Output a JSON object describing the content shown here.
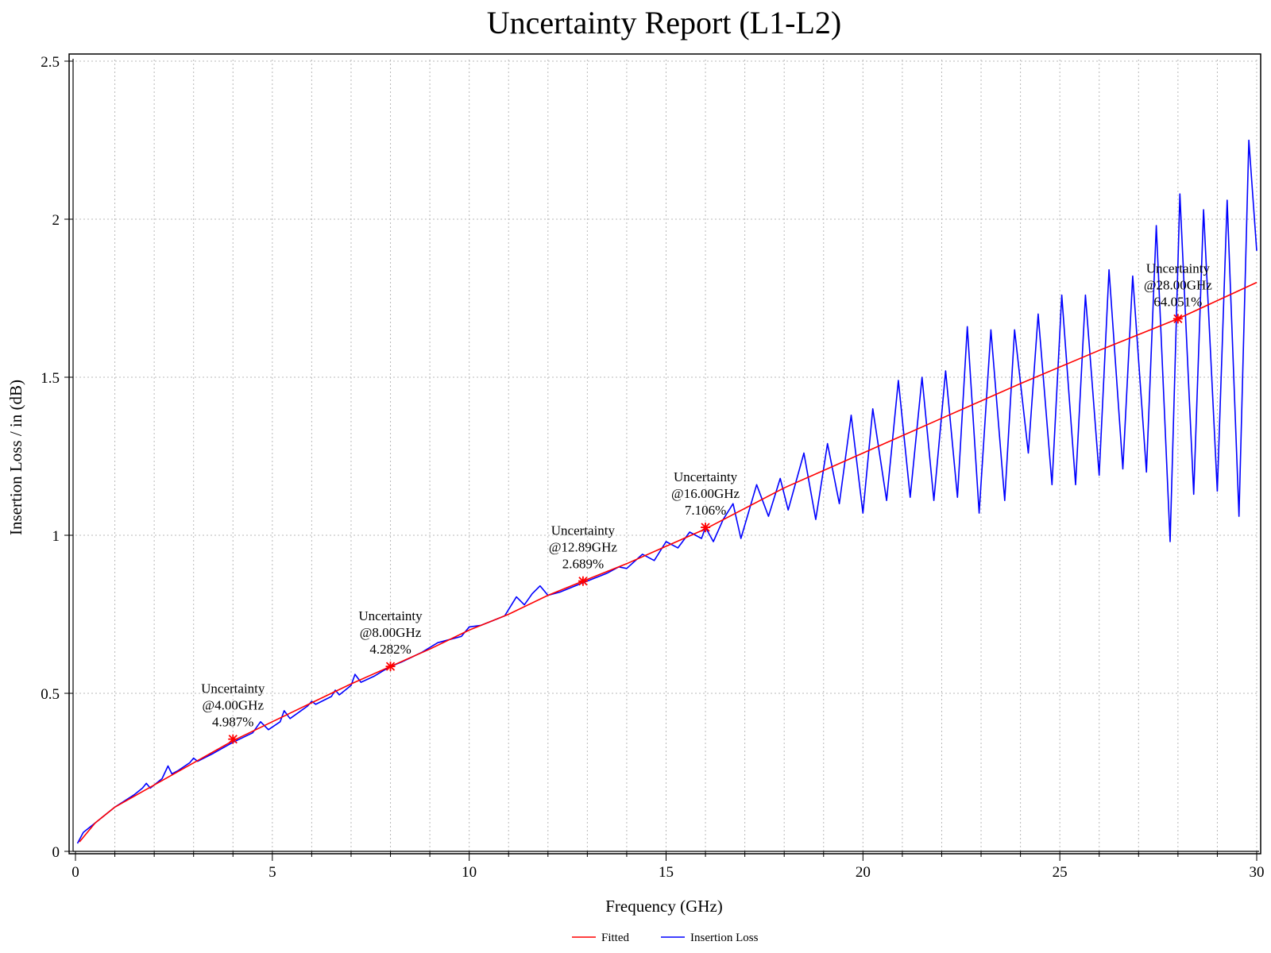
{
  "chart_data": {
    "type": "line",
    "title": "Uncertainty Report (L1-L2)",
    "xlabel": "Frequency (GHz)",
    "ylabel": "Insertion Loss / in (dB)",
    "xlim": [
      0,
      30
    ],
    "ylim": [
      0,
      2.5
    ],
    "xticks": [
      0,
      5,
      10,
      15,
      20,
      25,
      30
    ],
    "xtick_labels": [
      "0",
      "5",
      "10",
      "15",
      "20",
      "25",
      "30"
    ],
    "yticks": [
      0,
      0.5,
      1,
      1.5,
      2,
      2.5
    ],
    "ytick_labels": [
      "0",
      "0.5",
      "1",
      "1.5",
      "2",
      "2.5"
    ],
    "grid": true,
    "legend_position": "bottom-center",
    "series": [
      {
        "name": "Fitted",
        "color": "#ff0000",
        "x": [
          0.1,
          0.5,
          1,
          2,
          3,
          4,
          5,
          6,
          7,
          8,
          9,
          10,
          11,
          12,
          12.89,
          14,
          15,
          16,
          18,
          20,
          22,
          24,
          26,
          28,
          30
        ],
        "y": [
          0.03,
          0.09,
          0.14,
          0.21,
          0.28,
          0.35,
          0.41,
          0.47,
          0.53,
          0.585,
          0.64,
          0.7,
          0.75,
          0.81,
          0.855,
          0.91,
          0.965,
          1.02,
          1.15,
          1.26,
          1.37,
          1.48,
          1.585,
          1.685,
          1.8
        ]
      },
      {
        "name": "Insertion Loss",
        "color": "#0000ff",
        "x": [
          0.05,
          0.2,
          0.5,
          1,
          1.5,
          1.7,
          1.8,
          1.9,
          2.2,
          2.35,
          2.45,
          2.6,
          2.9,
          3.0,
          3.1,
          3.5,
          4,
          4.5,
          4.7,
          4.9,
          5.2,
          5.3,
          5.45,
          5.9,
          6.0,
          6.1,
          6.5,
          6.6,
          6.7,
          7.0,
          7.1,
          7.25,
          7.6,
          7.8,
          8.0,
          8.3,
          8.8,
          9.2,
          9.5,
          9.8,
          10.0,
          10.3,
          10.6,
          10.9,
          11.2,
          11.4,
          11.6,
          11.8,
          12.0,
          12.3,
          12.89,
          13.3,
          13.5,
          13.8,
          14.0,
          14.4,
          14.7,
          15.0,
          15.3,
          15.6,
          15.9,
          16.0,
          16.2,
          16.45,
          16.7,
          16.9,
          17.3,
          17.6,
          17.9,
          18.1,
          18.5,
          18.8,
          19.1,
          19.4,
          19.7,
          20.0,
          20.25,
          20.6,
          20.9,
          21.2,
          21.5,
          21.8,
          22.1,
          22.4,
          22.65,
          22.95,
          23.25,
          23.6,
          23.85,
          24.2,
          24.45,
          24.8,
          25.05,
          25.4,
          25.65,
          26.0,
          26.25,
          26.6,
          26.85,
          27.2,
          27.45,
          27.8,
          28.05,
          28.4,
          28.65,
          29.0,
          29.25,
          29.55,
          29.8,
          30.0
        ],
        "y": [
          0.025,
          0.06,
          0.09,
          0.14,
          0.18,
          0.2,
          0.215,
          0.2,
          0.23,
          0.27,
          0.245,
          0.255,
          0.28,
          0.295,
          0.285,
          0.31,
          0.345,
          0.375,
          0.41,
          0.385,
          0.41,
          0.445,
          0.42,
          0.46,
          0.475,
          0.465,
          0.49,
          0.51,
          0.495,
          0.525,
          0.56,
          0.535,
          0.555,
          0.57,
          0.585,
          0.6,
          0.63,
          0.66,
          0.67,
          0.68,
          0.71,
          0.715,
          0.73,
          0.745,
          0.805,
          0.78,
          0.815,
          0.84,
          0.81,
          0.82,
          0.85,
          0.87,
          0.88,
          0.9,
          0.895,
          0.94,
          0.92,
          0.98,
          0.96,
          1.01,
          0.99,
          1.025,
          0.98,
          1.05,
          1.1,
          0.99,
          1.16,
          1.06,
          1.18,
          1.08,
          1.26,
          1.05,
          1.29,
          1.1,
          1.38,
          1.07,
          1.4,
          1.11,
          1.49,
          1.12,
          1.5,
          1.11,
          1.52,
          1.12,
          1.66,
          1.07,
          1.65,
          1.11,
          1.65,
          1.26,
          1.7,
          1.16,
          1.76,
          1.16,
          1.76,
          1.19,
          1.84,
          1.21,
          1.82,
          1.2,
          1.98,
          0.98,
          2.08,
          1.13,
          2.03,
          1.14,
          2.06,
          1.06,
          2.25,
          1.9
        ]
      }
    ],
    "annotations": [
      {
        "x": 4.0,
        "y": 0.355,
        "lines": [
          "Uncertainty",
          "@4.00GHz",
          "4.987%"
        ]
      },
      {
        "x": 8.0,
        "y": 0.585,
        "lines": [
          "Uncertainty",
          "@8.00GHz",
          "4.282%"
        ]
      },
      {
        "x": 12.89,
        "y": 0.855,
        "lines": [
          "Uncertainty",
          "@12.89GHz",
          "2.689%"
        ]
      },
      {
        "x": 16.0,
        "y": 1.025,
        "lines": [
          "Uncertainty",
          "@16.00GHz",
          "7.106%"
        ]
      },
      {
        "x": 28.0,
        "y": 1.685,
        "lines": [
          "Uncertainty",
          "@28.00GHz",
          "64.051%"
        ]
      }
    ]
  }
}
